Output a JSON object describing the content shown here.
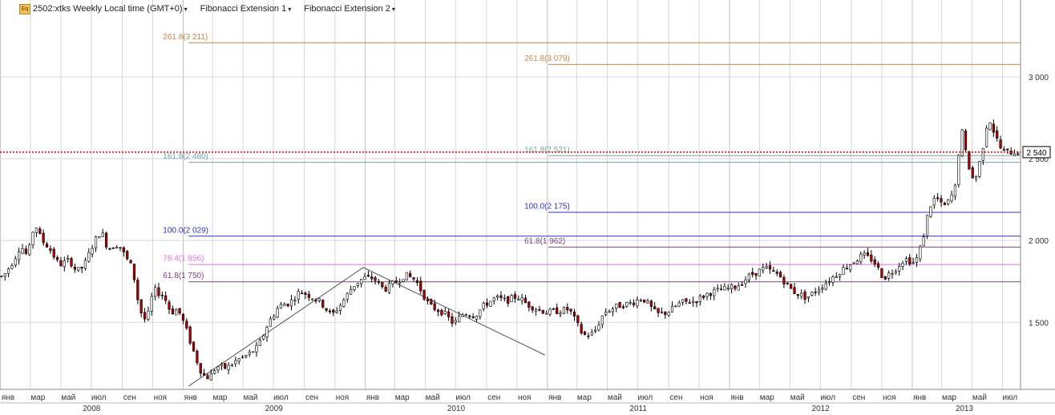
{
  "header": {
    "symbol": "2502:xtks",
    "timeframe": "Weekly",
    "tz": "Local time (GMT+0)",
    "dropdown_glyph": "▾",
    "studies": [
      {
        "label": "Fibonacci Extension 1"
      },
      {
        "label": "Fibonacci Extension 2"
      }
    ]
  },
  "colors": {
    "up_candle": "#ffffff",
    "down_candle": "#b00000",
    "fib_2618": "#c8874a",
    "fib_1618": "#6fa6a6",
    "fib_1000": "#3030c0",
    "fib_764": "#e070e0",
    "fib_618": "#804080",
    "current_price_line": "#e00000",
    "grid": "#d8d8d8"
  },
  "chart_data": {
    "type": "candlestick",
    "timeframe": "Weekly",
    "y_axis": {
      "ylim": [
        1090,
        3470
      ],
      "ticks": [
        "1 500",
        "2 000",
        "2 500",
        "3 000"
      ],
      "position": "right"
    },
    "x_axis": {
      "start_date": "2007-12-31",
      "end_date": "2013-07-29",
      "month_labels": [
        "янв",
        "мар",
        "май",
        "июл",
        "сен",
        "ноя"
      ],
      "years": [
        {
          "label": "2008",
          "start": "2008-01-01",
          "end": "2008-12-31"
        },
        {
          "label": "2009",
          "start": "2009-01-01",
          "end": "2009-12-31"
        },
        {
          "label": "2010",
          "start": "2010-01-01",
          "end": "2010-12-31"
        },
        {
          "label": "2011",
          "start": "2011-01-01",
          "end": "2011-12-31"
        },
        {
          "label": "2012",
          "start": "2012-01-01",
          "end": "2012-12-31"
        },
        {
          "label": "2013",
          "start": "2013-01-01",
          "end": "2013-07-29"
        }
      ]
    },
    "current_price": {
      "label": "2 540",
      "value": 2540
    },
    "fibonacci_extension_1": {
      "start_date": "2009-01-12",
      "points": [
        {
          "date": "2009-01-12",
          "value": 1110
        },
        {
          "date": "2009-12-28",
          "value": 1835
        },
        {
          "date": "2010-12-27",
          "value": 1300
        }
      ],
      "levels": [
        {
          "label": "261.8(3 211)",
          "value": 3211,
          "color": "#c8874a"
        },
        {
          "label": "161.8(2 480)",
          "value": 2480,
          "color": "#6fa6a6"
        },
        {
          "label": "100.0(2 029)",
          "value": 2029,
          "color": "#3030c0"
        },
        {
          "label": "76.4(1 856)",
          "value": 1856,
          "color": "#e070e0"
        },
        {
          "label": "61.8(1 750)",
          "value": 1750,
          "color": "#804080"
        }
      ]
    },
    "fibonacci_extension_2": {
      "start_date": "2011-01-03",
      "levels": [
        {
          "label": "261.8(3 079)",
          "value": 3079,
          "color": "#c8874a"
        },
        {
          "label": "161.8(2 521)",
          "value": 2521,
          "color": "#6fa6a6"
        },
        {
          "label": "100.0(2 175)",
          "value": 2175,
          "color": "#3030c0"
        },
        {
          "label": "61.8(1 962)",
          "value": 1962,
          "color": "#804080"
        }
      ]
    },
    "price_path": [
      [
        "2008-01-07",
        1780
      ],
      [
        "2008-01-28",
        1880
      ],
      [
        "2008-02-11",
        1970
      ],
      [
        "2008-02-25",
        1900
      ],
      [
        "2008-03-10",
        2110
      ],
      [
        "2008-03-24",
        2000
      ],
      [
        "2008-04-07",
        1960
      ],
      [
        "2008-04-28",
        1850
      ],
      [
        "2008-05-19",
        1880
      ],
      [
        "2008-06-02",
        1810
      ],
      [
        "2008-06-16",
        1840
      ],
      [
        "2008-07-07",
        1990
      ],
      [
        "2008-07-21",
        2060
      ],
      [
        "2008-08-04",
        1950
      ],
      [
        "2008-08-25",
        1980
      ],
      [
        "2008-09-08",
        1900
      ],
      [
        "2008-09-22",
        1830
      ],
      [
        "2008-10-06",
        1580
      ],
      [
        "2008-10-20",
        1500
      ],
      [
        "2008-11-03",
        1700
      ],
      [
        "2008-11-24",
        1660
      ],
      [
        "2008-12-08",
        1560
      ],
      [
        "2008-12-22",
        1580
      ],
      [
        "2009-01-05",
        1480
      ],
      [
        "2009-01-26",
        1290
      ],
      [
        "2009-02-09",
        1180
      ],
      [
        "2009-02-23",
        1160
      ],
      [
        "2009-03-09",
        1230
      ],
      [
        "2009-03-30",
        1220
      ],
      [
        "2009-04-20",
        1270
      ],
      [
        "2009-05-11",
        1300
      ],
      [
        "2009-06-01",
        1350
      ],
      [
        "2009-06-22",
        1500
      ],
      [
        "2009-07-13",
        1600
      ],
      [
        "2009-08-03",
        1620
      ],
      [
        "2009-08-24",
        1690
      ],
      [
        "2009-09-14",
        1660
      ],
      [
        "2009-10-05",
        1620
      ],
      [
        "2009-10-26",
        1540
      ],
      [
        "2009-11-16",
        1620
      ],
      [
        "2009-12-07",
        1720
      ],
      [
        "2009-12-28",
        1770
      ],
      [
        "2010-01-18",
        1770
      ],
      [
        "2010-02-08",
        1700
      ],
      [
        "2010-03-01",
        1740
      ],
      [
        "2010-03-22",
        1790
      ],
      [
        "2010-04-12",
        1760
      ],
      [
        "2010-05-10",
        1600
      ],
      [
        "2010-06-07",
        1560
      ],
      [
        "2010-06-28",
        1490
      ],
      [
        "2010-07-19",
        1560
      ],
      [
        "2010-08-09",
        1540
      ],
      [
        "2010-08-30",
        1610
      ],
      [
        "2010-09-20",
        1650
      ],
      [
        "2010-10-11",
        1630
      ],
      [
        "2010-11-01",
        1660
      ],
      [
        "2010-11-22",
        1610
      ],
      [
        "2010-12-13",
        1580
      ],
      [
        "2011-01-03",
        1560
      ],
      [
        "2011-01-24",
        1570
      ],
      [
        "2011-02-14",
        1580
      ],
      [
        "2011-03-14",
        1420
      ],
      [
        "2011-04-04",
        1430
      ],
      [
        "2011-04-25",
        1560
      ],
      [
        "2011-05-23",
        1600
      ],
      [
        "2011-06-20",
        1620
      ],
      [
        "2011-07-11",
        1650
      ],
      [
        "2011-08-08",
        1550
      ],
      [
        "2011-08-29",
        1560
      ],
      [
        "2011-09-26",
        1620
      ],
      [
        "2011-10-24",
        1630
      ],
      [
        "2011-11-21",
        1680
      ],
      [
        "2011-12-19",
        1700
      ],
      [
        "2012-01-16",
        1720
      ],
      [
        "2012-02-13",
        1790
      ],
      [
        "2012-03-12",
        1830
      ],
      [
        "2012-04-09",
        1790
      ],
      [
        "2012-05-07",
        1690
      ],
      [
        "2012-06-04",
        1650
      ],
      [
        "2012-06-25",
        1700
      ],
      [
        "2012-07-16",
        1750
      ],
      [
        "2012-08-13",
        1820
      ],
      [
        "2012-09-10",
        1880
      ],
      [
        "2012-09-24",
        1910
      ],
      [
        "2012-10-15",
        1880
      ],
      [
        "2012-11-05",
        1770
      ],
      [
        "2012-11-26",
        1820
      ],
      [
        "2012-12-17",
        1890
      ],
      [
        "2013-01-07",
        1860
      ],
      [
        "2013-01-21",
        1980
      ],
      [
        "2013-02-04",
        2200
      ],
      [
        "2013-02-18",
        2270
      ],
      [
        "2013-03-04",
        2200
      ],
      [
        "2013-03-18",
        2250
      ],
      [
        "2013-04-01",
        2350
      ],
      [
        "2013-04-08",
        2720
      ],
      [
        "2013-04-22",
        2480
      ],
      [
        "2013-05-06",
        2350
      ],
      [
        "2013-05-20",
        2520
      ],
      [
        "2013-06-03",
        2760
      ],
      [
        "2013-06-17",
        2640
      ],
      [
        "2013-07-01",
        2540
      ]
    ]
  }
}
